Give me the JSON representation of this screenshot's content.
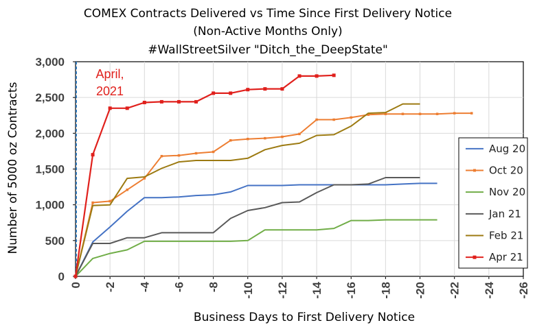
{
  "chart_data": {
    "type": "line",
    "title": [
      "COMEX Contracts Delivered vs Time Since First Delivery Notice",
      "(Non-Active Months Only)",
      "#WallStreetSilver     \"Ditch_the_DeepState\""
    ],
    "xlabel": "Business Days to First Delivery Notice",
    "ylabel": "Number of 5000 oz Contracts",
    "xlim": [
      0,
      -26
    ],
    "ylim": [
      0,
      3000
    ],
    "xticks": [
      0,
      -2,
      -4,
      -6,
      -8,
      -10,
      -12,
      -14,
      -16,
      -18,
      -20,
      -22,
      -24,
      -26
    ],
    "xtick_labels": [
      "0",
      "-2",
      "-4",
      "-6",
      "-8",
      "-10",
      "-12",
      "-14",
      "-16",
      "-18",
      "-20",
      "-22",
      "-24",
      "-26"
    ],
    "yticks": [
      0,
      500,
      1000,
      1500,
      2000,
      2500,
      3000
    ],
    "ytick_labels": [
      "0",
      "500",
      "1,000",
      "1,500",
      "2,000",
      "2,500",
      "3,000"
    ],
    "grid": true,
    "legend_position": "right",
    "annotation": [
      "April,",
      "2021"
    ],
    "annotation_color": "#e0201c",
    "series": [
      {
        "name": "Aug 20",
        "color": "#4472c4",
        "marker": "none",
        "x": [
          0,
          -1,
          -2,
          -3,
          -4,
          -5,
          -6,
          -7,
          -8,
          -9,
          -10,
          -11,
          -12,
          -13,
          -14,
          -15,
          -16,
          -17,
          -18,
          -19,
          -20,
          -21
        ],
        "y": [
          0,
          480,
          690,
          910,
          1100,
          1100,
          1110,
          1130,
          1140,
          1180,
          1270,
          1270,
          1270,
          1280,
          1280,
          1280,
          1280,
          1280,
          1280,
          1290,
          1300,
          1300
        ]
      },
      {
        "name": "Oct 20",
        "color": "#ed7d31",
        "marker": "square-small",
        "x": [
          0,
          -1,
          -2,
          -3,
          -4,
          -5,
          -6,
          -7,
          -8,
          -9,
          -10,
          -11,
          -12,
          -13,
          -14,
          -15,
          -16,
          -17,
          -18,
          -19,
          -20,
          -21,
          -22,
          -23
        ],
        "y": [
          0,
          1030,
          1050,
          1210,
          1370,
          1680,
          1690,
          1720,
          1740,
          1900,
          1920,
          1930,
          1950,
          1990,
          2190,
          2190,
          2220,
          2260,
          2270,
          2270,
          2270,
          2270,
          2280,
          2280
        ]
      },
      {
        "name": "Nov 20",
        "color": "#70ad47",
        "marker": "none",
        "x": [
          0,
          -1,
          -2,
          -3,
          -4,
          -5,
          -6,
          -7,
          -8,
          -9,
          -10,
          -11,
          -12,
          -13,
          -14,
          -15,
          -16,
          -17,
          -18,
          -19,
          -20,
          -21
        ],
        "y": [
          0,
          250,
          320,
          370,
          490,
          490,
          490,
          490,
          490,
          490,
          500,
          650,
          650,
          650,
          650,
          670,
          780,
          780,
          790,
          790,
          790,
          790
        ]
      },
      {
        "name": "Jan 21",
        "color": "#595959",
        "marker": "none",
        "x": [
          0,
          -1,
          -2,
          -3,
          -4,
          -5,
          -6,
          -7,
          -8,
          -9,
          -10,
          -11,
          -12,
          -13,
          -14,
          -15,
          -16,
          -17,
          -18,
          -19,
          -20
        ],
        "y": [
          0,
          460,
          460,
          540,
          540,
          610,
          610,
          610,
          610,
          810,
          920,
          960,
          1030,
          1040,
          1170,
          1280,
          1280,
          1290,
          1380,
          1380,
          1380
        ]
      },
      {
        "name": "Feb 21",
        "color": "#9c7a11",
        "marker": "none",
        "x": [
          0,
          -1,
          -2,
          -3,
          -4,
          -5,
          -6,
          -7,
          -8,
          -9,
          -10,
          -11,
          -12,
          -13,
          -14,
          -15,
          -16,
          -17,
          -18,
          -19,
          -20
        ],
        "y": [
          0,
          990,
          1000,
          1370,
          1390,
          1510,
          1600,
          1620,
          1620,
          1620,
          1650,
          1770,
          1830,
          1860,
          1970,
          1980,
          2100,
          2280,
          2290,
          2410,
          2410
        ]
      },
      {
        "name": "Apr 21",
        "color": "#e0201c",
        "marker": "square",
        "x": [
          0,
          -1,
          -2,
          -3,
          -4,
          -5,
          -6,
          -7,
          -8,
          -9,
          -10,
          -11,
          -12,
          -13,
          -14,
          -15
        ],
        "y": [
          0,
          1700,
          2350,
          2350,
          2430,
          2440,
          2440,
          2440,
          2560,
          2560,
          2610,
          2620,
          2620,
          2800,
          2800,
          2810
        ]
      }
    ]
  }
}
